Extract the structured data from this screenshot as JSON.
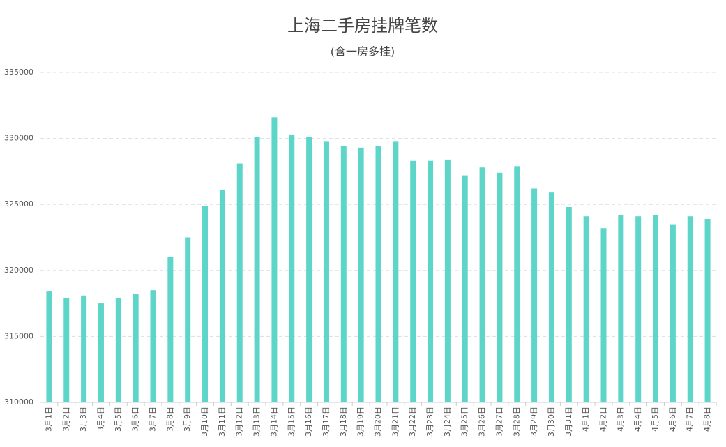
{
  "chart_data": {
    "type": "bar",
    "title": "上海二手房挂牌笔数",
    "subtitle": "(含一房多挂)",
    "categories": [
      "3月1日",
      "3月2日",
      "3月3日",
      "3月4日",
      "3月5日",
      "3月6日",
      "3月7日",
      "3月8日",
      "3月9日",
      "3月10日",
      "3月11日",
      "3月12日",
      "3月13日",
      "3月14日",
      "3月15日",
      "3月16日",
      "3月17日",
      "3月18日",
      "3月19日",
      "3月20日",
      "3月21日",
      "3月22日",
      "3月23日",
      "3月24日",
      "3月25日",
      "3月26日",
      "3月27日",
      "3月28日",
      "3月29日",
      "3月30日",
      "3月31日",
      "4月1日",
      "4月2日",
      "4月3日",
      "4月4日",
      "4月5日",
      "4月6日",
      "4月7日",
      "4月8日"
    ],
    "values": [
      318400,
      317900,
      318100,
      317500,
      317900,
      318200,
      318500,
      321000,
      322500,
      324900,
      326100,
      328100,
      330100,
      331600,
      330300,
      330100,
      329800,
      329400,
      329300,
      329400,
      329800,
      328300,
      328300,
      328400,
      327200,
      327800,
      327400,
      327900,
      326200,
      325900,
      324800,
      324100,
      323200,
      324200,
      324100,
      324200,
      323500,
      324100,
      323900
    ],
    "color": "#5dd5c8",
    "ylim": [
      310000,
      335000
    ],
    "yticks": [
      310000,
      315000,
      320000,
      325000,
      330000,
      335000
    ],
    "grid": true
  }
}
